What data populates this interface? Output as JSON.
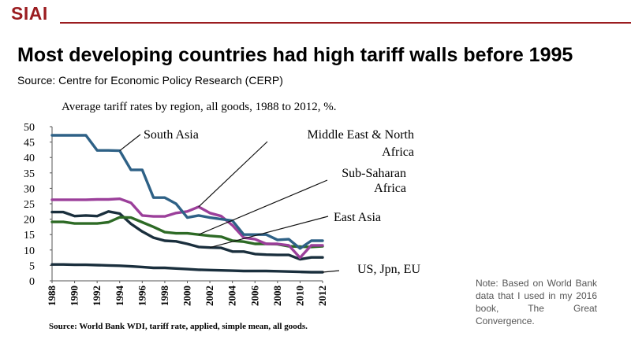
{
  "header": {
    "logo": "SIAI",
    "title": "Most developing countries had high tariff walls before 1995",
    "source": "Source: Centre for Economic Policy Research (CERP)"
  },
  "note": "Note: Based on World Bank data that I used in my 2016 book, The Great Convergence.",
  "colors": {
    "brand": "#9b1c20",
    "south_asia": "#2e6186",
    "mena": "#9b3f9a",
    "ssa": "#2d6a25",
    "east_asia": "#1a2f3d",
    "us_jpn_eu": "#1a2f3d",
    "us_jpn_eu_secondary": "#3f8fb8"
  },
  "chart_data": {
    "type": "line",
    "title": "Average tariff rates by region, all goods, 1988 to 2012, %.",
    "footnote": "Source: World Bank WDI, tariff rate, applied, simple mean, all goods.",
    "xlabel": "",
    "ylabel": "",
    "ylim": [
      0,
      50
    ],
    "xlim": [
      1988,
      2012
    ],
    "yticks": [
      0,
      5,
      10,
      15,
      20,
      25,
      30,
      35,
      40,
      45,
      50
    ],
    "xticks": [
      1988,
      1990,
      1992,
      1994,
      1996,
      1998,
      2000,
      2002,
      2004,
      2006,
      2008,
      2010,
      2012
    ],
    "grid": false,
    "x": [
      1988,
      1989,
      1990,
      1991,
      1992,
      1993,
      1994,
      1995,
      1996,
      1997,
      1998,
      1999,
      2000,
      2001,
      2002,
      2003,
      2004,
      2005,
      2006,
      2007,
      2008,
      2009,
      2010,
      2011,
      2012
    ],
    "series": [
      {
        "name": "South Asia",
        "values": [
          47.2,
          47.2,
          47.2,
          47.2,
          42.3,
          42.3,
          42.2,
          36.0,
          36.0,
          27.0,
          27.0,
          25.0,
          20.5,
          21.2,
          20.5,
          20.0,
          19.5,
          15.0,
          15.0,
          15.0,
          13.3,
          13.5,
          10.5,
          13.0,
          13.0
        ]
      },
      {
        "name": "Middle East & North Africa",
        "values": [
          26.3,
          26.3,
          26.3,
          26.3,
          26.4,
          26.4,
          26.6,
          25.3,
          21.2,
          20.9,
          20.9,
          22.0,
          22.5,
          24.0,
          22.0,
          21.0,
          18.0,
          14.0,
          13.5,
          12.0,
          12.0,
          11.5,
          7.5,
          11.5,
          11.5
        ]
      },
      {
        "name": "Sub-Saharan Africa",
        "values": [
          19.1,
          19.1,
          18.6,
          18.6,
          18.6,
          19.0,
          20.6,
          20.5,
          19.0,
          17.5,
          15.8,
          15.4,
          15.4,
          15.0,
          14.6,
          14.3,
          13.0,
          12.7,
          12.0,
          12.0,
          11.9,
          11.2,
          11.1,
          11.0,
          11.2
        ]
      },
      {
        "name": "East Asia",
        "values": [
          22.3,
          22.3,
          21.0,
          21.2,
          21.0,
          22.5,
          21.8,
          18.5,
          16.0,
          14.0,
          13.0,
          12.8,
          12.0,
          11.0,
          10.8,
          10.7,
          9.5,
          9.5,
          8.7,
          8.5,
          8.4,
          8.4,
          7.0,
          7.6,
          7.6
        ]
      },
      {
        "name": "US, Jpn, EU",
        "values": [
          5.3,
          5.3,
          5.2,
          5.2,
          5.1,
          5.0,
          4.9,
          4.7,
          4.5,
          4.2,
          4.2,
          4.0,
          3.8,
          3.6,
          3.5,
          3.4,
          3.3,
          3.2,
          3.2,
          3.2,
          3.1,
          3.0,
          2.9,
          2.8,
          2.8
        ]
      }
    ],
    "annotations": [
      {
        "label_lines": [
          "South Asia"
        ],
        "pointer_to": {
          "x": 1994,
          "series": "South Asia"
        }
      },
      {
        "label_lines": [
          "Middle East & North",
          "Africa"
        ],
        "pointer_to": {
          "x": 2001,
          "series": "Middle East & North Africa"
        }
      },
      {
        "label_lines": [
          "Sub-Saharan",
          "Africa"
        ],
        "pointer_to": {
          "x": 2001,
          "series": "Sub-Saharan Africa"
        }
      },
      {
        "label_lines": [
          "East Asia"
        ],
        "pointer_to": {
          "x": 2002,
          "series": "East Asia"
        }
      },
      {
        "label_lines": [
          "US, Jpn, EU"
        ],
        "pointer_to": {
          "x": 2012,
          "series": "US, Jpn, EU"
        }
      }
    ]
  }
}
